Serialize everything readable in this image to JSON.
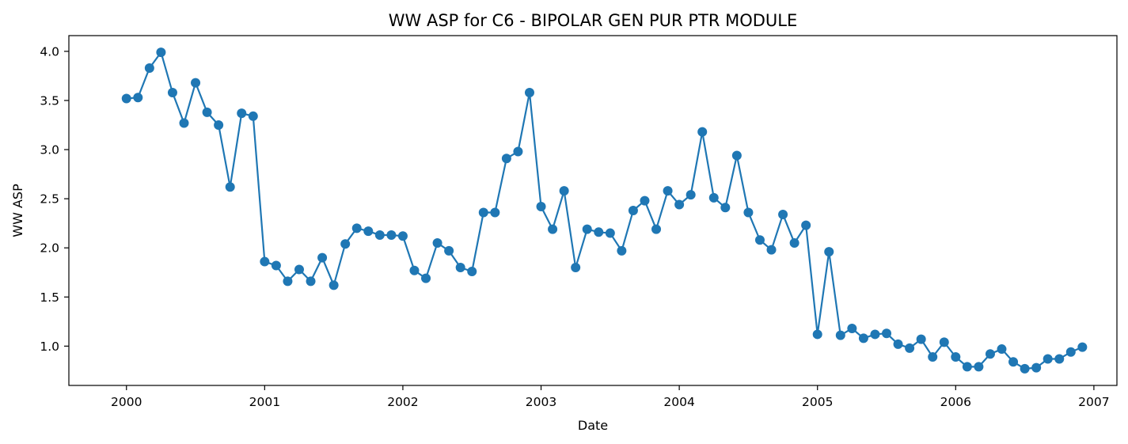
{
  "chart_data": {
    "type": "line",
    "title": "WW ASP for C6 - BIPOLAR GEN PUR PTR MODULE",
    "xlabel": "Date",
    "ylabel": "WW ASP",
    "x_unit": "month",
    "xlim": [
      "1999-08",
      "2007-03"
    ],
    "ylim": [
      0.6,
      4.16
    ],
    "xticks": [
      "2000",
      "2001",
      "2002",
      "2003",
      "2004",
      "2005",
      "2006",
      "2007"
    ],
    "yticks": [
      "1.0",
      "1.5",
      "2.0",
      "2.5",
      "3.0",
      "3.5",
      "4.0"
    ],
    "grid": false,
    "marker": "circle",
    "color": "#1f77b4",
    "series": [
      {
        "x": [
          "2000-01",
          "2000-02",
          "2000-03",
          "2000-04",
          "2000-05",
          "2000-06",
          "2000-07",
          "2000-08",
          "2000-09",
          "2000-10",
          "2000-11",
          "2000-12",
          "2001-01",
          "2001-02",
          "2001-03",
          "2001-04",
          "2001-05",
          "2001-06",
          "2001-07",
          "2001-08",
          "2001-09",
          "2001-10",
          "2001-11",
          "2001-12",
          "2002-01",
          "2002-02",
          "2002-03",
          "2002-04",
          "2002-05",
          "2002-06",
          "2002-07",
          "2002-08",
          "2002-09",
          "2002-10",
          "2002-11",
          "2002-12",
          "2003-01",
          "2003-02",
          "2003-03",
          "2003-04",
          "2003-05",
          "2003-06",
          "2003-07",
          "2003-08",
          "2003-09",
          "2003-10",
          "2003-11",
          "2003-12",
          "2004-01",
          "2004-02",
          "2004-03",
          "2004-04",
          "2004-05",
          "2004-06",
          "2004-07",
          "2004-08",
          "2004-09",
          "2004-10",
          "2004-11",
          "2004-12",
          "2005-01",
          "2005-02",
          "2005-03",
          "2005-04",
          "2005-05",
          "2005-06",
          "2005-07",
          "2005-08",
          "2005-09",
          "2005-10",
          "2005-11",
          "2005-12",
          "2006-01",
          "2006-02",
          "2006-03",
          "2006-04",
          "2006-05",
          "2006-06",
          "2006-07",
          "2006-08",
          "2006-09",
          "2006-10",
          "2006-11",
          "2006-12"
        ],
        "y": [
          3.52,
          3.53,
          3.83,
          3.99,
          3.58,
          3.27,
          3.68,
          3.38,
          3.25,
          2.62,
          3.37,
          3.34,
          1.86,
          1.82,
          1.66,
          1.78,
          1.66,
          1.9,
          1.62,
          2.04,
          2.2,
          2.17,
          2.13,
          2.13,
          2.12,
          1.77,
          1.69,
          2.05,
          1.97,
          1.8,
          1.76,
          2.36,
          2.36,
          2.91,
          2.98,
          3.58,
          2.42,
          2.19,
          2.58,
          1.8,
          2.19,
          2.16,
          2.15,
          1.97,
          2.38,
          2.48,
          2.19,
          2.58,
          2.44,
          2.54,
          3.18,
          2.51,
          2.41,
          2.94,
          2.36,
          2.08,
          1.98,
          2.34,
          2.05,
          2.23,
          1.12,
          1.96,
          1.11,
          1.18,
          1.08,
          1.12,
          1.13,
          1.02,
          0.98,
          1.07,
          0.89,
          1.04,
          0.89,
          0.79,
          0.79,
          0.92,
          0.97,
          0.84,
          0.77,
          0.78,
          0.87,
          0.87,
          0.94,
          0.99
        ]
      }
    ]
  }
}
